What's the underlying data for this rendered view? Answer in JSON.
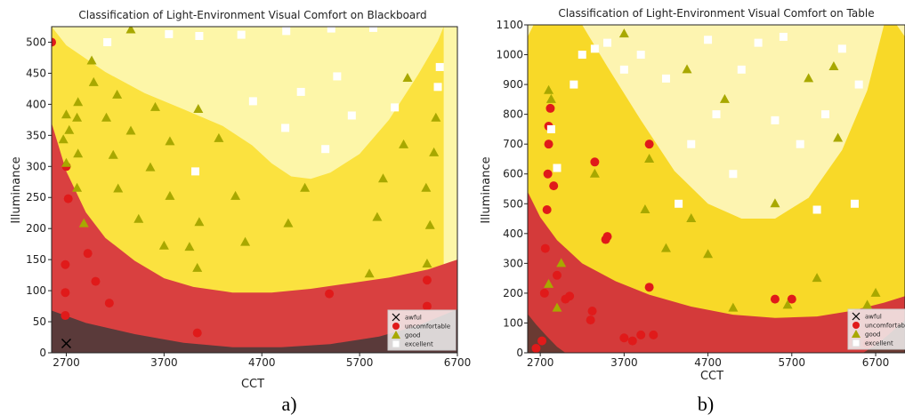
{
  "chart_data": [
    {
      "type": "scatter",
      "title": "Classification of Light-Environment Visual Comfort on Blackboard",
      "xlabel": "CCT",
      "ylabel": "Illuminance",
      "panel_label": "a)",
      "xlim": [
        2550,
        6700
      ],
      "ylim": [
        0,
        525
      ],
      "xticks": [
        2700,
        3700,
        4700,
        5700,
        6700
      ],
      "yticks": [
        0,
        50,
        100,
        150,
        200,
        250,
        300,
        350,
        400,
        450,
        500
      ],
      "legend_position": "lower-right",
      "legend": [
        "awful",
        "uncomfortable",
        "good",
        "excellent"
      ],
      "region_colors": {
        "awful": "#5a3a3a",
        "uncomfortable": "#d94040",
        "good": "#fbe23f",
        "excellent": "#fdf6a8"
      },
      "boundaries": {
        "awful_upper": [
          [
            2550,
            68
          ],
          [
            2900,
            48
          ],
          [
            3400,
            30
          ],
          [
            3900,
            16
          ],
          [
            4400,
            9
          ],
          [
            4900,
            9
          ],
          [
            5400,
            14
          ],
          [
            5900,
            26
          ],
          [
            6300,
            44
          ],
          [
            6700,
            70
          ]
        ],
        "uncomfortable_upper": [
          [
            2550,
            370
          ],
          [
            2700,
            292
          ],
          [
            2900,
            226
          ],
          [
            3100,
            185
          ],
          [
            3400,
            148
          ],
          [
            3700,
            120
          ],
          [
            4000,
            106
          ],
          [
            4400,
            97
          ],
          [
            4800,
            97
          ],
          [
            5200,
            103
          ],
          [
            5600,
            112
          ],
          [
            6000,
            121
          ],
          [
            6400,
            134
          ],
          [
            6700,
            150
          ]
        ],
        "good_upper": [
          [
            2550,
            525
          ],
          [
            2700,
            495
          ],
          [
            3100,
            452
          ],
          [
            3500,
            418
          ],
          [
            3900,
            392
          ],
          [
            4300,
            365
          ],
          [
            4600,
            334
          ],
          [
            4800,
            305
          ],
          [
            5000,
            284
          ],
          [
            5200,
            280
          ],
          [
            5400,
            290
          ],
          [
            5700,
            320
          ],
          [
            6000,
            375
          ],
          [
            6300,
            448
          ],
          [
            6500,
            502
          ],
          [
            6560,
            525
          ]
        ]
      },
      "series": [
        {
          "name": "awful",
          "color": "#000000",
          "marker": "x",
          "points": [
            [
              2700,
              15
            ]
          ]
        },
        {
          "name": "uncomfortable",
          "color": "#e01a1a",
          "marker": "circle",
          "points": [
            [
              2550,
              500
            ],
            [
              2700,
              300
            ],
            [
              2720,
              248
            ],
            [
              2690,
              142
            ],
            [
              2690,
              97
            ],
            [
              2690,
              60
            ],
            [
              2920,
              160
            ],
            [
              3000,
              115
            ],
            [
              3140,
              80
            ],
            [
              4040,
              32
            ],
            [
              5390,
              95
            ],
            [
              6390,
              117
            ],
            [
              6390,
              75
            ]
          ]
        },
        {
          "name": "good",
          "color": "#a8a800",
          "marker": "triangle",
          "points": [
            [
              3360,
              520
            ],
            [
              2960,
              470
            ],
            [
              2980,
              435
            ],
            [
              3220,
              415
            ],
            [
              2820,
              403
            ],
            [
              2700,
              383
            ],
            [
              2810,
              378
            ],
            [
              3110,
              378
            ],
            [
              3610,
              395
            ],
            [
              2730,
              358
            ],
            [
              3360,
              357
            ],
            [
              2670,
              343
            ],
            [
              3760,
              340
            ],
            [
              4050,
              392
            ],
            [
              4260,
              345
            ],
            [
              2820,
              320
            ],
            [
              3180,
              318
            ],
            [
              2700,
              305
            ],
            [
              3560,
              298
            ],
            [
              2810,
              265
            ],
            [
              3230,
              264
            ],
            [
              3760,
              252
            ],
            [
              4430,
              252
            ],
            [
              2880,
              208
            ],
            [
              3440,
              215
            ],
            [
              4060,
              210
            ],
            [
              4970,
              208
            ],
            [
              5140,
              265
            ],
            [
              3960,
              170
            ],
            [
              3700,
              172
            ],
            [
              4530,
              178
            ],
            [
              5800,
              127
            ],
            [
              5940,
              280
            ],
            [
              6150,
              335
            ],
            [
              6190,
              442
            ],
            [
              6380,
              265
            ],
            [
              6420,
              205
            ],
            [
              6460,
              322
            ],
            [
              6480,
              378
            ],
            [
              5880,
              218
            ],
            [
              4040,
              136
            ],
            [
              6390,
              143
            ]
          ]
        },
        {
          "name": "excellent",
          "color": "#ffffff",
          "marker": "square",
          "points": [
            [
              3120,
              500
            ],
            [
              3750,
              513
            ],
            [
              4060,
              510
            ],
            [
              4490,
              512
            ],
            [
              4950,
              518
            ],
            [
              5410,
              522
            ],
            [
              5840,
              523
            ],
            [
              6520,
              460
            ],
            [
              6500,
              428
            ],
            [
              5470,
              445
            ],
            [
              5620,
              382
            ],
            [
              5100,
              420
            ],
            [
              4940,
              362
            ],
            [
              4610,
              405
            ],
            [
              6060,
              395
            ],
            [
              5350,
              328
            ],
            [
              4020,
              292
            ]
          ]
        }
      ]
    },
    {
      "type": "scatter",
      "title": "Classification of Light-Environment Visual Comfort on Table",
      "xlabel": "CCT",
      "ylabel": "Illuminance",
      "panel_label": "b)",
      "xlim": [
        2550,
        7050
      ],
      "ylim": [
        0,
        1100
      ],
      "xticks": [
        2700,
        3700,
        4700,
        5700,
        6700
      ],
      "yticks": [
        0,
        100,
        200,
        300,
        400,
        500,
        600,
        700,
        800,
        900,
        1000,
        1100
      ],
      "legend_position": "lower-right",
      "legend": [
        "awful",
        "uncomfortable",
        "good",
        "excellent"
      ],
      "region_colors": {
        "awful": "#6a3a32",
        "uncomfortable": "#d43a3a",
        "good": "#f8d928",
        "excellent": "#fdf4b0"
      },
      "boundaries": {
        "awful_upper": [
          [
            2550,
            130
          ],
          [
            2650,
            95
          ],
          [
            2780,
            55
          ],
          [
            2900,
            20
          ],
          [
            3000,
            0
          ],
          [
            6550,
            0
          ],
          [
            6700,
            25
          ],
          [
            6850,
            60
          ],
          [
            7050,
            110
          ]
        ],
        "uncomfortable_upper": [
          [
            2550,
            540
          ],
          [
            2700,
            455
          ],
          [
            2900,
            378
          ],
          [
            3200,
            300
          ],
          [
            3600,
            240
          ],
          [
            4000,
            195
          ],
          [
            4500,
            155
          ],
          [
            5000,
            128
          ],
          [
            5500,
            117
          ],
          [
            6000,
            122
          ],
          [
            6400,
            140
          ],
          [
            6800,
            168
          ],
          [
            7050,
            190
          ]
        ],
        "good_upper": [
          [
            2550,
            1060
          ],
          [
            2620,
            1100
          ],
          [
            6950,
            1100
          ],
          [
            7050,
            1060
          ]
        ],
        "excellent_region": [
          [
            3200,
            1100
          ],
          [
            3500,
            960
          ],
          [
            3900,
            780
          ],
          [
            4300,
            610
          ],
          [
            4700,
            500
          ],
          [
            5100,
            450
          ],
          [
            5500,
            450
          ],
          [
            5900,
            520
          ],
          [
            6300,
            680
          ],
          [
            6600,
            880
          ],
          [
            6800,
            1100
          ]
        ]
      },
      "series": [
        {
          "name": "awful",
          "color": "#000000",
          "marker": "x",
          "points": []
        },
        {
          "name": "uncomfortable",
          "color": "#e01a1a",
          "marker": "circle",
          "points": [
            [
              2650,
              15
            ],
            [
              2720,
              40
            ],
            [
              2750,
              200
            ],
            [
              2760,
              350
            ],
            [
              2780,
              480
            ],
            [
              2790,
              600
            ],
            [
              2800,
              700
            ],
            [
              2800,
              760
            ],
            [
              2820,
              820
            ],
            [
              2860,
              560
            ],
            [
              2900,
              260
            ],
            [
              3000,
              180
            ],
            [
              3050,
              190
            ],
            [
              3300,
              110
            ],
            [
              3320,
              140
            ],
            [
              3350,
              640
            ],
            [
              3480,
              380
            ],
            [
              3500,
              390
            ],
            [
              3700,
              50
            ],
            [
              3800,
              40
            ],
            [
              3900,
              60
            ],
            [
              4000,
              700
            ],
            [
              4000,
              220
            ],
            [
              4050,
              60
            ],
            [
              5500,
              180
            ],
            [
              5700,
              180
            ],
            [
              6600,
              30
            ]
          ]
        },
        {
          "name": "good",
          "color": "#a8a800",
          "marker": "triangle",
          "points": [
            [
              2800,
              880
            ],
            [
              2800,
              230
            ],
            [
              2830,
              850
            ],
            [
              2900,
              150
            ],
            [
              2950,
              300
            ],
            [
              3350,
              600
            ],
            [
              3700,
              1070
            ],
            [
              3950,
              480
            ],
            [
              4000,
              650
            ],
            [
              4200,
              350
            ],
            [
              4450,
              950
            ],
            [
              4500,
              450
            ],
            [
              4700,
              330
            ],
            [
              4900,
              850
            ],
            [
              5000,
              150
            ],
            [
              5500,
              500
            ],
            [
              5650,
              160
            ],
            [
              5900,
              920
            ],
            [
              6000,
              250
            ],
            [
              6200,
              960
            ],
            [
              6250,
              720
            ],
            [
              6600,
              160
            ],
            [
              6700,
              200
            ]
          ]
        },
        {
          "name": "excellent",
          "color": "#ffffff",
          "marker": "square",
          "points": [
            [
              2830,
              750
            ],
            [
              2900,
              620
            ],
            [
              3100,
              900
            ],
            [
              3200,
              1000
            ],
            [
              3350,
              1020
            ],
            [
              3500,
              1040
            ],
            [
              3700,
              950
            ],
            [
              3900,
              1000
            ],
            [
              4200,
              920
            ],
            [
              4350,
              500
            ],
            [
              4500,
              700
            ],
            [
              4700,
              1050
            ],
            [
              4800,
              800
            ],
            [
              5000,
              600
            ],
            [
              5100,
              950
            ],
            [
              5300,
              1040
            ],
            [
              5500,
              780
            ],
            [
              5600,
              1060
            ],
            [
              5800,
              700
            ],
            [
              6000,
              480
            ],
            [
              6100,
              800
            ],
            [
              6300,
              1020
            ],
            [
              6450,
              500
            ],
            [
              6500,
              900
            ]
          ]
        }
      ]
    }
  ],
  "panel_labels": [
    "a)",
    "b)"
  ]
}
